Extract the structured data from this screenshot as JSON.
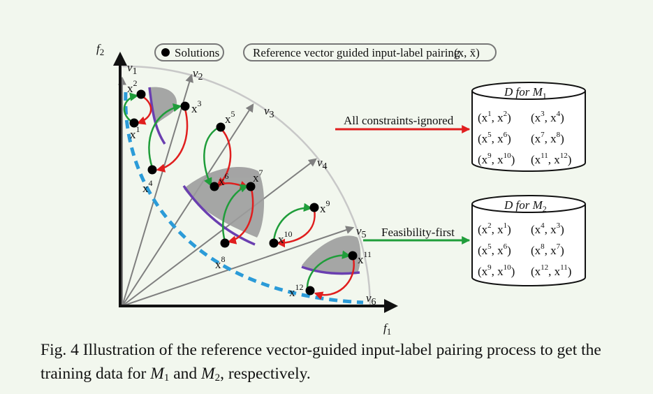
{
  "axes": {
    "x_label": "f",
    "x_sub": "1",
    "y_label": "f",
    "y_sub": "2"
  },
  "legend": {
    "solutions": "Solutions",
    "pairing": "Reference vector guided input-label pairing",
    "pair_notation": "(x, x̄)"
  },
  "vectors": [
    {
      "label": "v",
      "sub": "1"
    },
    {
      "label": "v",
      "sub": "2"
    },
    {
      "label": "v",
      "sub": "3"
    },
    {
      "label": "v",
      "sub": "4"
    },
    {
      "label": "v",
      "sub": "5"
    },
    {
      "label": "v",
      "sub": "6"
    }
  ],
  "solutions": [
    {
      "label": "x",
      "sup": "1"
    },
    {
      "label": "x",
      "sup": "2"
    },
    {
      "label": "x",
      "sup": "3"
    },
    {
      "label": "x",
      "sup": "4"
    },
    {
      "label": "x",
      "sup": "5"
    },
    {
      "label": "x",
      "sup": "6"
    },
    {
      "label": "x",
      "sup": "7"
    },
    {
      "label": "x",
      "sup": "8"
    },
    {
      "label": "x",
      "sup": "9"
    },
    {
      "label": "x",
      "sup": "10"
    },
    {
      "label": "x",
      "sup": "11"
    },
    {
      "label": "x",
      "sup": "12"
    }
  ],
  "arrows": {
    "all_constraints_ignored": "All constraints-ignored",
    "feasibility_first": "Feasibility-first"
  },
  "datasets": [
    {
      "title_prefix": "D for ",
      "title_model": "M",
      "title_sub": "1",
      "color": "#e01e1e",
      "rows": [
        [
          [
            "1",
            "2"
          ],
          [
            "3",
            "4"
          ]
        ],
        [
          [
            "5",
            "6"
          ],
          [
            "7",
            "8"
          ]
        ],
        [
          [
            "9",
            "10"
          ],
          [
            "11",
            "12"
          ]
        ]
      ]
    },
    {
      "title_prefix": "D for ",
      "title_model": "M",
      "title_sub": "2",
      "color": "#1f9d3a",
      "rows": [
        [
          [
            "2",
            "1"
          ],
          [
            "4",
            "3"
          ]
        ],
        [
          [
            "5",
            "6"
          ],
          [
            "8",
            "7"
          ]
        ],
        [
          [
            "9",
            "10"
          ],
          [
            "12",
            "11"
          ]
        ]
      ]
    }
  ],
  "caption": {
    "part1": "Fig. 4 Illustration of the reference vector-guided input-label pairing process to get the training data for ",
    "m1": "M",
    "m1_sub": "1",
    "and": " and ",
    "m2": "M",
    "m2_sub": "2",
    "part2": ", respectively."
  }
}
